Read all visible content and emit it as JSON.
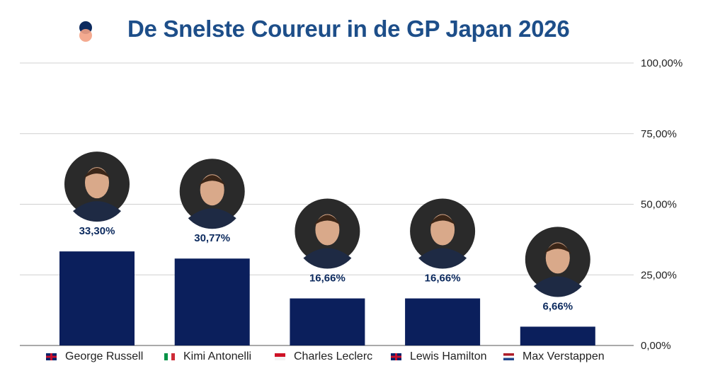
{
  "title": "De Snelste Coureur in de GP Japan 2026",
  "colors": {
    "bar": "#0b1f5c",
    "title": "#1d4e89",
    "grid": "#d0d0d0"
  },
  "chart_data": {
    "type": "bar",
    "title": "De Snelste Coureur in de GP Japan 2026",
    "categories": [
      "George Russell",
      "Kimi Antonelli",
      "Charles Leclerc",
      "Lewis Hamilton",
      "Max Verstappen"
    ],
    "values": [
      33.3,
      30.77,
      16.66,
      16.66,
      6.66
    ],
    "data_labels": [
      "33,30%",
      "30,77%",
      "16,66%",
      "16,66%",
      "6,66%"
    ],
    "flags": [
      "uk",
      "it",
      "mc",
      "uk",
      "nl"
    ],
    "ylim": [
      0,
      100
    ],
    "yticks": [
      0,
      25,
      50,
      75,
      100
    ],
    "ytick_labels": [
      "0,00%",
      "25,00%",
      "50,00%",
      "75,00%",
      "100,00%"
    ],
    "y_axis_side": "right",
    "grid": true,
    "legend_placement": "bottom",
    "driver_photos": true
  }
}
